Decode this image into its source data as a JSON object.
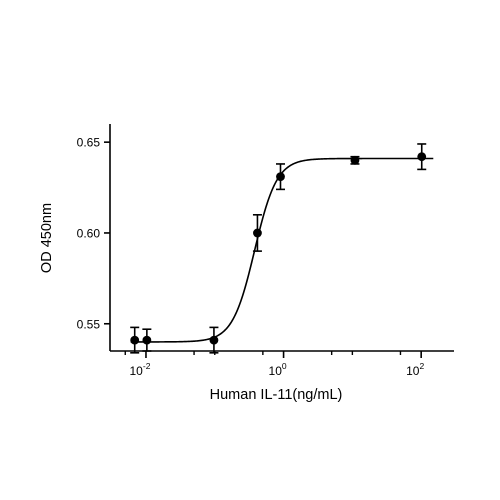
{
  "chart_data": {
    "type": "scatter",
    "xlabel": "Human IL-11(ng/mL)",
    "ylabel": "OD 450nm",
    "x_scale": "log",
    "x_range": [
      0.003,
      300
    ],
    "ylim": [
      0.535,
      0.66
    ],
    "y_ticks": [
      {
        "value": 0.55,
        "label": "0.55"
      },
      {
        "value": 0.6,
        "label": "0.60"
      },
      {
        "value": 0.65,
        "label": "0.65"
      }
    ],
    "x_ticks": [
      {
        "value": 0.01,
        "base": "10",
        "exp": "-2"
      },
      {
        "value": 1,
        "base": "10",
        "exp": "0"
      },
      {
        "value": 100,
        "base": "10",
        "exp": "2"
      }
    ],
    "x_minor_ticks": [
      0.005,
      0.05,
      0.1,
      0.5,
      5,
      10,
      50
    ],
    "series": [
      {
        "points": [
          {
            "x": 0.00686,
            "y": 0.541,
            "err": 0.007
          },
          {
            "x": 0.0103,
            "y": 0.541,
            "err": 0.006
          },
          {
            "x": 0.0972,
            "y": 0.541,
            "err": 0.007
          },
          {
            "x": 0.417,
            "y": 0.6,
            "err": 0.01
          },
          {
            "x": 0.902,
            "y": 0.631,
            "err": 0.007
          },
          {
            "x": 10.9,
            "y": 0.64,
            "err": 0.002
          },
          {
            "x": 101.9,
            "y": 0.642,
            "err": 0.007
          }
        ]
      }
    ],
    "fit_curve": {
      "bottom": 0.54,
      "top": 0.641,
      "ec50": 0.38,
      "hill": 2.7
    },
    "grid": false,
    "legend": "none"
  }
}
